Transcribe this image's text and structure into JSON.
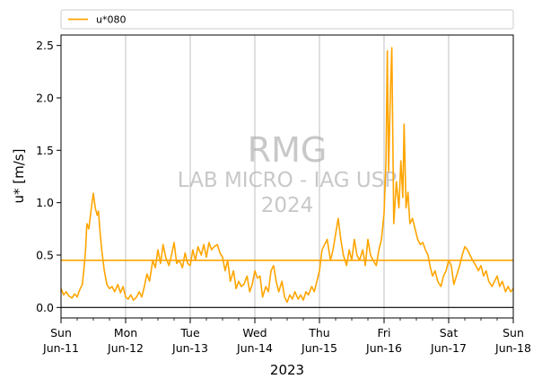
{
  "chart_data": {
    "type": "line",
    "xlabel": "2023",
    "ylabel": "u* [m/s]",
    "ylim": [
      -0.1,
      2.6
    ],
    "yticks": [
      "0.0",
      "0.5",
      "1.0",
      "1.5",
      "2.0",
      "2.5"
    ],
    "ytick_values": [
      0,
      0.5,
      1.0,
      1.5,
      2.0,
      2.5
    ],
    "xlim": [
      0,
      7
    ],
    "xticks": [
      {
        "day": "Sun",
        "date": "Jun-11"
      },
      {
        "day": "Mon",
        "date": "Jun-12"
      },
      {
        "day": "Tue",
        "date": "Jun-13"
      },
      {
        "day": "Wed",
        "date": "Jun-14"
      },
      {
        "day": "Thu",
        "date": "Jun-15"
      },
      {
        "day": "Fri",
        "date": "Jun-16"
      },
      {
        "day": "Sat",
        "date": "Jun-17"
      },
      {
        "day": "Sun",
        "date": "Jun-18"
      }
    ],
    "grid": "vertical-major",
    "legend_position": "top",
    "mean_line": 0.45,
    "zero_line": 0,
    "colors": {
      "series": "#FFA500",
      "grid": "#b0b0b0",
      "zero": "#000000"
    },
    "watermark": [
      "RMG",
      "LAB MICRO - IAG USP",
      "2024"
    ],
    "series": [
      {
        "name": "u*080",
        "points": [
          [
            0.0,
            0.18
          ],
          [
            0.04,
            0.12
          ],
          [
            0.08,
            0.15
          ],
          [
            0.12,
            0.11
          ],
          [
            0.17,
            0.09
          ],
          [
            0.21,
            0.13
          ],
          [
            0.25,
            0.1
          ],
          [
            0.29,
            0.17
          ],
          [
            0.33,
            0.22
          ],
          [
            0.36,
            0.4
          ],
          [
            0.38,
            0.55
          ],
          [
            0.4,
            0.8
          ],
          [
            0.43,
            0.75
          ],
          [
            0.46,
            0.9
          ],
          [
            0.48,
            1.0
          ],
          [
            0.5,
            1.09
          ],
          [
            0.53,
            0.95
          ],
          [
            0.56,
            0.88
          ],
          [
            0.58,
            0.92
          ],
          [
            0.6,
            0.75
          ],
          [
            0.63,
            0.55
          ],
          [
            0.67,
            0.35
          ],
          [
            0.71,
            0.22
          ],
          [
            0.75,
            0.18
          ],
          [
            0.79,
            0.2
          ],
          [
            0.83,
            0.15
          ],
          [
            0.88,
            0.22
          ],
          [
            0.92,
            0.14
          ],
          [
            0.96,
            0.2
          ],
          [
            1.0,
            0.1
          ],
          [
            1.04,
            0.08
          ],
          [
            1.08,
            0.12
          ],
          [
            1.12,
            0.07
          ],
          [
            1.17,
            0.1
          ],
          [
            1.21,
            0.15
          ],
          [
            1.25,
            0.1
          ],
          [
            1.29,
            0.2
          ],
          [
            1.33,
            0.32
          ],
          [
            1.37,
            0.25
          ],
          [
            1.42,
            0.45
          ],
          [
            1.46,
            0.38
          ],
          [
            1.5,
            0.55
          ],
          [
            1.54,
            0.42
          ],
          [
            1.58,
            0.6
          ],
          [
            1.62,
            0.48
          ],
          [
            1.67,
            0.4
          ],
          [
            1.71,
            0.5
          ],
          [
            1.75,
            0.62
          ],
          [
            1.79,
            0.42
          ],
          [
            1.83,
            0.45
          ],
          [
            1.88,
            0.38
          ],
          [
            1.92,
            0.52
          ],
          [
            1.96,
            0.42
          ],
          [
            2.0,
            0.4
          ],
          [
            2.04,
            0.55
          ],
          [
            2.08,
            0.45
          ],
          [
            2.12,
            0.58
          ],
          [
            2.17,
            0.5
          ],
          [
            2.21,
            0.6
          ],
          [
            2.25,
            0.48
          ],
          [
            2.29,
            0.62
          ],
          [
            2.33,
            0.55
          ],
          [
            2.37,
            0.58
          ],
          [
            2.42,
            0.6
          ],
          [
            2.46,
            0.52
          ],
          [
            2.5,
            0.48
          ],
          [
            2.54,
            0.35
          ],
          [
            2.58,
            0.45
          ],
          [
            2.62,
            0.25
          ],
          [
            2.67,
            0.35
          ],
          [
            2.71,
            0.18
          ],
          [
            2.75,
            0.25
          ],
          [
            2.79,
            0.2
          ],
          [
            2.83,
            0.22
          ],
          [
            2.88,
            0.3
          ],
          [
            2.92,
            0.15
          ],
          [
            2.96,
            0.22
          ],
          [
            3.0,
            0.35
          ],
          [
            3.04,
            0.28
          ],
          [
            3.08,
            0.3
          ],
          [
            3.12,
            0.1
          ],
          [
            3.17,
            0.2
          ],
          [
            3.21,
            0.15
          ],
          [
            3.25,
            0.35
          ],
          [
            3.29,
            0.4
          ],
          [
            3.33,
            0.25
          ],
          [
            3.37,
            0.15
          ],
          [
            3.42,
            0.25
          ],
          [
            3.46,
            0.1
          ],
          [
            3.5,
            0.05
          ],
          [
            3.54,
            0.12
          ],
          [
            3.58,
            0.08
          ],
          [
            3.62,
            0.15
          ],
          [
            3.67,
            0.08
          ],
          [
            3.71,
            0.12
          ],
          [
            3.75,
            0.07
          ],
          [
            3.79,
            0.15
          ],
          [
            3.83,
            0.12
          ],
          [
            3.88,
            0.2
          ],
          [
            3.92,
            0.15
          ],
          [
            3.96,
            0.25
          ],
          [
            4.0,
            0.35
          ],
          [
            4.04,
            0.55
          ],
          [
            4.08,
            0.6
          ],
          [
            4.12,
            0.65
          ],
          [
            4.17,
            0.45
          ],
          [
            4.21,
            0.55
          ],
          [
            4.25,
            0.7
          ],
          [
            4.29,
            0.85
          ],
          [
            4.33,
            0.65
          ],
          [
            4.37,
            0.5
          ],
          [
            4.42,
            0.4
          ],
          [
            4.46,
            0.55
          ],
          [
            4.5,
            0.45
          ],
          [
            4.54,
            0.65
          ],
          [
            4.58,
            0.5
          ],
          [
            4.62,
            0.45
          ],
          [
            4.67,
            0.55
          ],
          [
            4.71,
            0.4
          ],
          [
            4.75,
            0.65
          ],
          [
            4.79,
            0.5
          ],
          [
            4.83,
            0.45
          ],
          [
            4.88,
            0.4
          ],
          [
            4.92,
            0.55
          ],
          [
            4.96,
            0.65
          ],
          [
            5.0,
            0.9
          ],
          [
            5.03,
            1.4
          ],
          [
            5.05,
            2.45
          ],
          [
            5.07,
            1.3
          ],
          [
            5.1,
            2.1
          ],
          [
            5.12,
            2.48
          ],
          [
            5.15,
            0.8
          ],
          [
            5.19,
            1.2
          ],
          [
            5.23,
            0.95
          ],
          [
            5.26,
            1.4
          ],
          [
            5.29,
            1.05
          ],
          [
            5.31,
            1.75
          ],
          [
            5.34,
            0.95
          ],
          [
            5.37,
            1.1
          ],
          [
            5.4,
            0.8
          ],
          [
            5.44,
            0.85
          ],
          [
            5.48,
            0.75
          ],
          [
            5.52,
            0.65
          ],
          [
            5.56,
            0.6
          ],
          [
            5.6,
            0.62
          ],
          [
            5.64,
            0.55
          ],
          [
            5.68,
            0.5
          ],
          [
            5.71,
            0.4
          ],
          [
            5.75,
            0.3
          ],
          [
            5.79,
            0.35
          ],
          [
            5.83,
            0.25
          ],
          [
            5.88,
            0.2
          ],
          [
            5.92,
            0.3
          ],
          [
            5.96,
            0.35
          ],
          [
            6.0,
            0.45
          ],
          [
            6.04,
            0.4
          ],
          [
            6.08,
            0.22
          ],
          [
            6.12,
            0.3
          ],
          [
            6.17,
            0.4
          ],
          [
            6.21,
            0.5
          ],
          [
            6.25,
            0.58
          ],
          [
            6.29,
            0.55
          ],
          [
            6.33,
            0.5
          ],
          [
            6.37,
            0.45
          ],
          [
            6.42,
            0.4
          ],
          [
            6.46,
            0.35
          ],
          [
            6.5,
            0.4
          ],
          [
            6.54,
            0.3
          ],
          [
            6.58,
            0.35
          ],
          [
            6.62,
            0.25
          ],
          [
            6.67,
            0.2
          ],
          [
            6.71,
            0.25
          ],
          [
            6.75,
            0.3
          ],
          [
            6.79,
            0.2
          ],
          [
            6.83,
            0.25
          ],
          [
            6.88,
            0.15
          ],
          [
            6.92,
            0.2
          ],
          [
            6.96,
            0.15
          ],
          [
            7.0,
            0.18
          ]
        ]
      }
    ]
  }
}
